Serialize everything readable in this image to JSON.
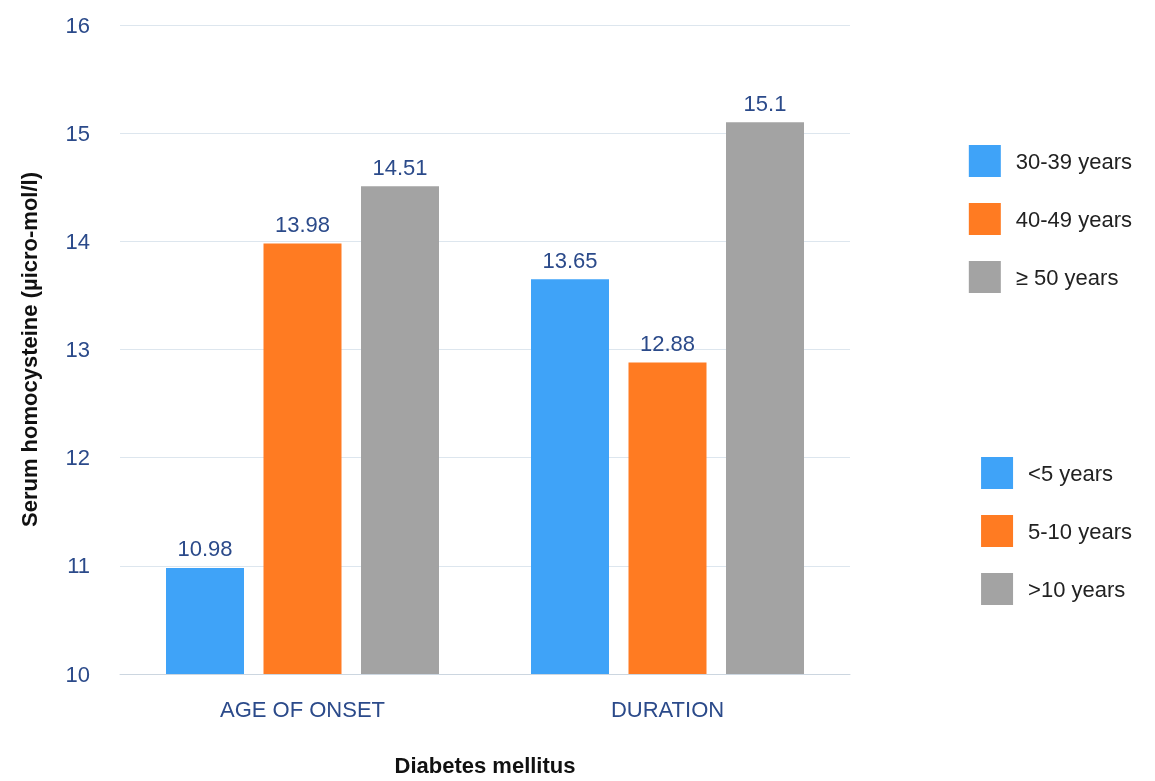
{
  "chart_data": {
    "type": "bar",
    "xlabel": "Diabetes mellitus",
    "ylabel": "Serum homocysteine (µicro-mol/l)",
    "categories": [
      "AGE OF ONSET",
      "DURATION"
    ],
    "series": [
      {
        "name": "30-39 years",
        "color": "#3fa3f8",
        "values": [
          10.98,
          null
        ]
      },
      {
        "name": "40-49 years",
        "color": "#ff7b22",
        "values": [
          13.98,
          null
        ]
      },
      {
        "name": "≥ 50 years",
        "color": "#a3a3a3",
        "values": [
          14.51,
          null
        ]
      },
      {
        "name": "<5 years",
        "color": "#3fa3f8",
        "values": [
          null,
          13.65
        ]
      },
      {
        "name": "5-10 years",
        "color": "#ff7b22",
        "values": [
          null,
          12.88
        ]
      },
      {
        "name": ">10 years",
        "color": "#a3a3a3",
        "values": [
          null,
          15.1
        ]
      }
    ],
    "ylim": [
      10,
      16
    ],
    "yticks": [
      10,
      11,
      12,
      13,
      14,
      15,
      16
    ],
    "grid": "y",
    "legend": "right",
    "data_labels": true
  }
}
